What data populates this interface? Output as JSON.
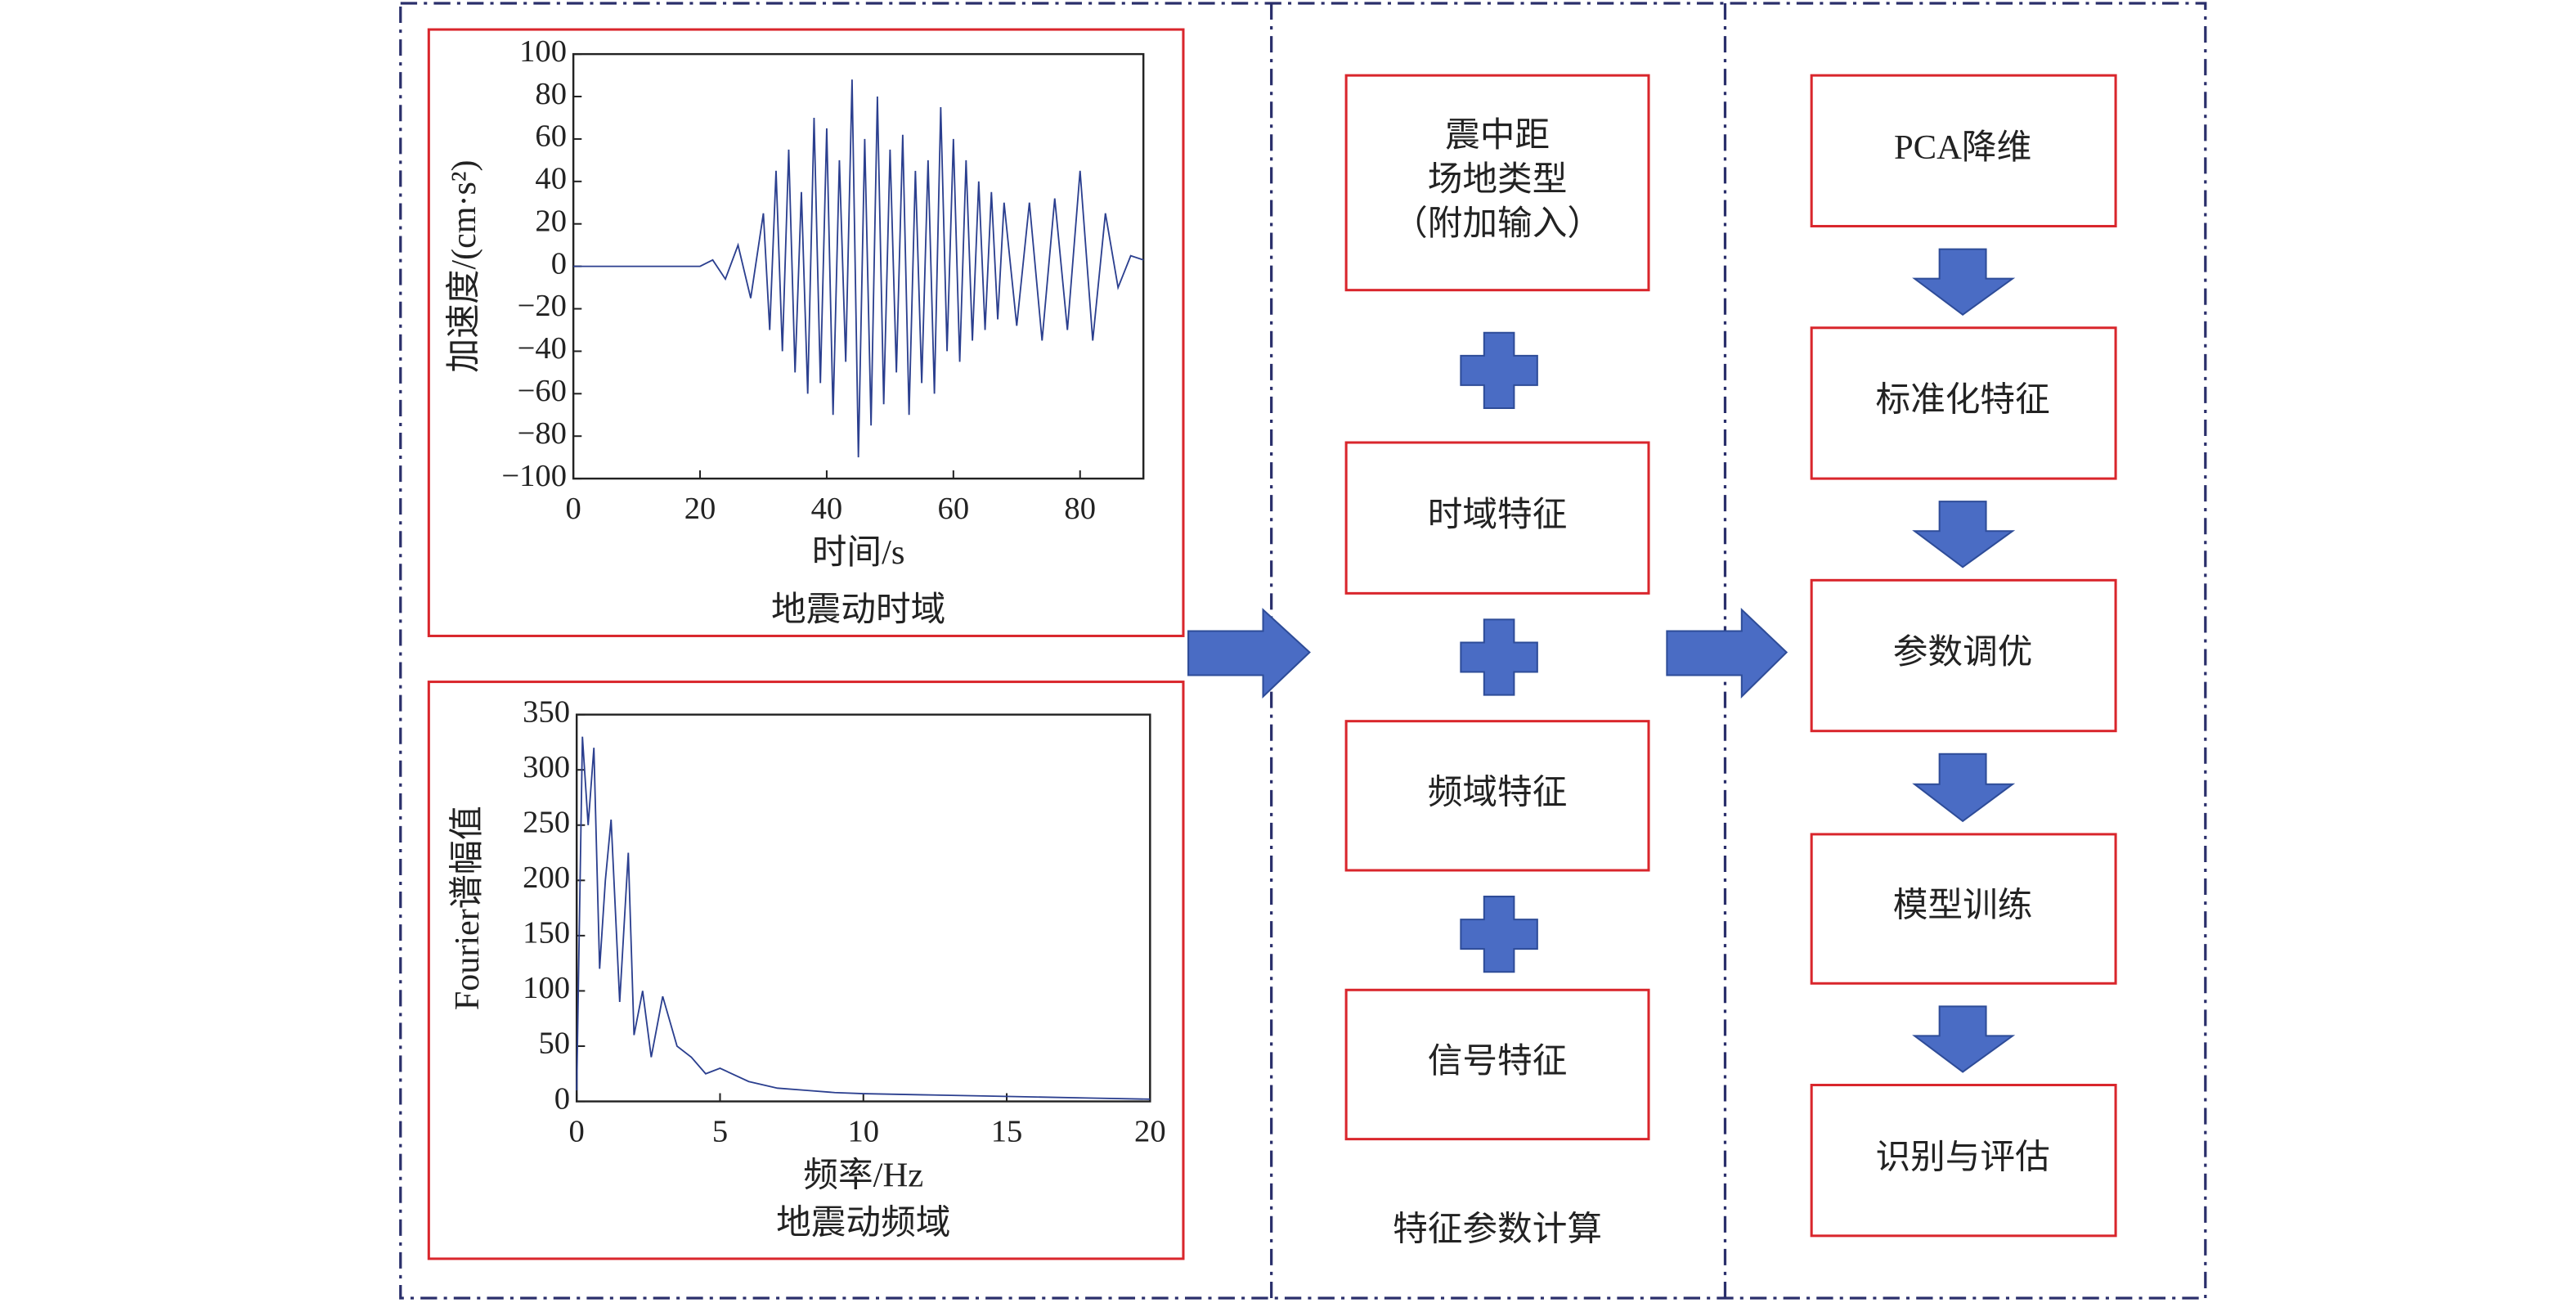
{
  "chart_data": [
    {
      "type": "line",
      "title": "地震动时域",
      "x_label": "时间/s",
      "y_label": "加速度/(cm·s²)",
      "xlim": [
        0,
        90
      ],
      "xticks": [
        0,
        20,
        40,
        60,
        80
      ],
      "ylim": [
        -100,
        100
      ],
      "yticks": [
        {
          "value": -100,
          "label": "−100"
        },
        {
          "value": -80,
          "label": "−80"
        },
        {
          "value": -60,
          "label": "−60"
        },
        {
          "value": -40,
          "label": "−40"
        },
        {
          "value": -20,
          "label": "−20"
        },
        0,
        20,
        40,
        60,
        80,
        100
      ],
      "series": [
        {
          "color": "#2b3f8f",
          "x": [
            0,
            10,
            20,
            22,
            24,
            26,
            28,
            30,
            31,
            32,
            33,
            34,
            35,
            36,
            37,
            38,
            39,
            40,
            41,
            42,
            43,
            44,
            45,
            46,
            47,
            48,
            49,
            50,
            51,
            52,
            53,
            54,
            55,
            56,
            57,
            58,
            59,
            60,
            61,
            62,
            63,
            64,
            65,
            66,
            67,
            68,
            70,
            72,
            74,
            76,
            78,
            80,
            82,
            84,
            86,
            88,
            90
          ],
          "values": [
            0,
            0,
            0,
            3,
            -6,
            10,
            -15,
            25,
            -30,
            45,
            -40,
            55,
            -50,
            35,
            -60,
            70,
            -55,
            65,
            -70,
            50,
            -45,
            88,
            -90,
            60,
            -75,
            80,
            -65,
            55,
            -50,
            62,
            -70,
            45,
            -55,
            50,
            -60,
            75,
            -40,
            60,
            -45,
            50,
            -35,
            40,
            -30,
            35,
            -25,
            30,
            -28,
            30,
            -35,
            32,
            -30,
            45,
            -35,
            25,
            -10,
            5,
            3
          ]
        }
      ]
    },
    {
      "type": "line",
      "title": "地震动频域",
      "x_label": "频率/Hz",
      "y_label": "Fourier谱幅值",
      "xlim": [
        0,
        20
      ],
      "xticks": [
        0,
        5,
        10,
        15,
        20
      ],
      "ylim": [
        0,
        350
      ],
      "yticks": [
        0,
        50,
        100,
        150,
        200,
        250,
        300,
        350
      ],
      "series": [
        {
          "color": "#2b3f8f",
          "x": [
            0,
            0.2,
            0.4,
            0.6,
            0.8,
            1,
            1.2,
            1.5,
            1.8,
            2,
            2.3,
            2.6,
            3,
            3.5,
            4,
            4.5,
            5,
            6,
            7,
            8,
            9,
            10,
            12,
            14,
            16,
            18,
            20
          ],
          "values": [
            10,
            330,
            250,
            320,
            120,
            200,
            255,
            90,
            225,
            60,
            100,
            40,
            95,
            50,
            40,
            25,
            30,
            18,
            12,
            10,
            8,
            7,
            6,
            5,
            4,
            3,
            2
          ]
        }
      ]
    }
  ],
  "features": {
    "boxes": [
      [
        "震中距",
        "场地类型",
        "（附加输入）"
      ],
      [
        "时域特征"
      ],
      [
        "频域特征"
      ],
      [
        "信号特征"
      ]
    ],
    "caption": "特征参数计算"
  },
  "pipeline": {
    "steps": [
      "PCA降维",
      "标准化特征",
      "参数调优",
      "模型训练",
      "识别与评估"
    ]
  }
}
